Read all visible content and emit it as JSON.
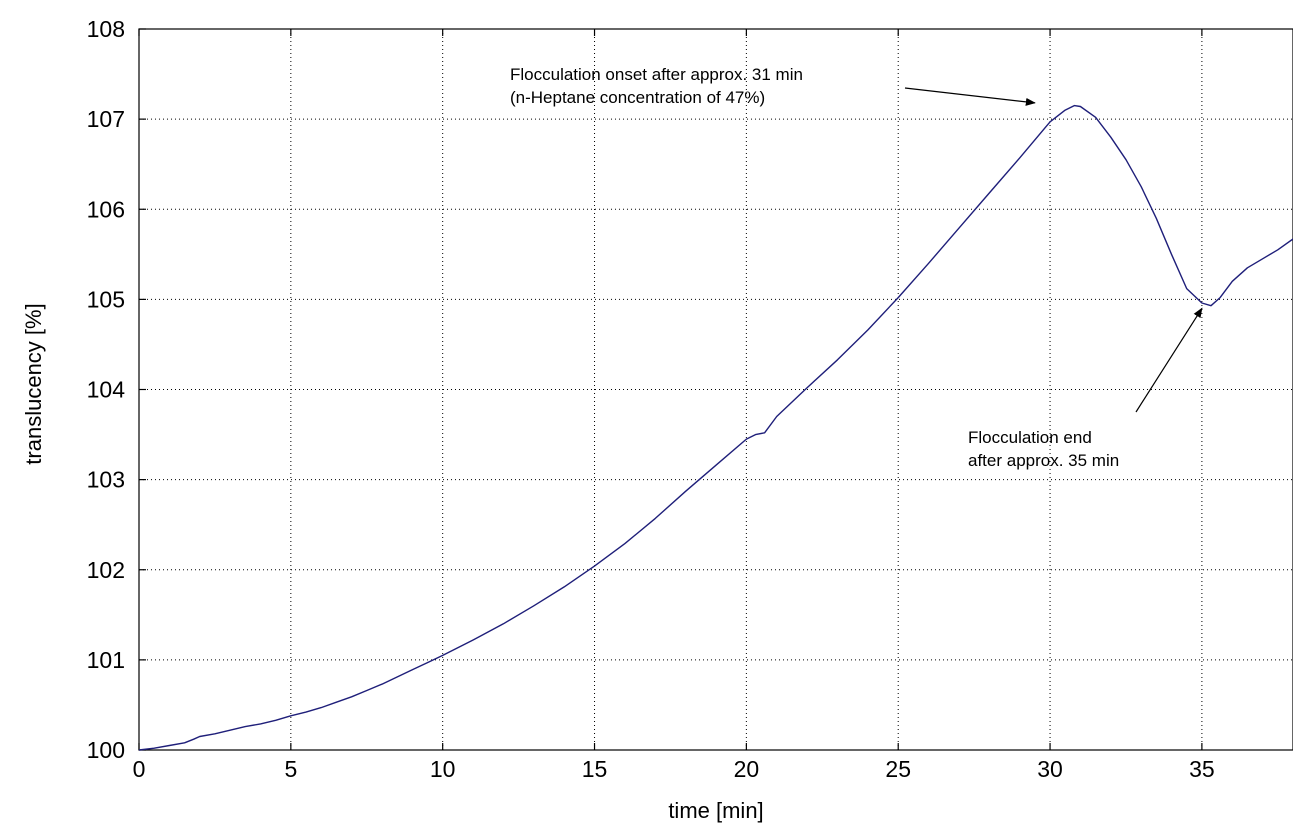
{
  "chart_data": {
    "type": "line",
    "xlabel": "time [min]",
    "ylabel": "translucency [%]",
    "xlim": [
      0,
      38
    ],
    "ylim": [
      100,
      108
    ],
    "xticks": [
      0,
      5,
      10,
      15,
      20,
      25,
      30,
      35
    ],
    "yticks": [
      100,
      101,
      102,
      103,
      104,
      105,
      106,
      107,
      108
    ],
    "grid": true,
    "series": [
      {
        "color": "#1f1f7a",
        "x": [
          0,
          0.5,
          1,
          1.5,
          1.8,
          2,
          2.5,
          3,
          3.5,
          4,
          4.5,
          5,
          5.5,
          6,
          6.5,
          7,
          7.5,
          8,
          8.5,
          9,
          9.5,
          10,
          11,
          12,
          13,
          14,
          15,
          16,
          17,
          18,
          19,
          20,
          20.3,
          20.6,
          21,
          22,
          23,
          24,
          25,
          26,
          27,
          28,
          29,
          30,
          30.5,
          30.8,
          31,
          31.5,
          32,
          32.5,
          33,
          33.5,
          34,
          34.5,
          35,
          35.3,
          35.6,
          36,
          36.5,
          37,
          37.5,
          38
        ],
        "y": [
          100.0,
          100.02,
          100.05,
          100.08,
          100.12,
          100.15,
          100.18,
          100.22,
          100.26,
          100.29,
          100.33,
          100.38,
          100.42,
          100.47,
          100.53,
          100.59,
          100.66,
          100.73,
          100.81,
          100.89,
          100.97,
          101.05,
          101.22,
          101.4,
          101.6,
          101.81,
          102.04,
          102.29,
          102.57,
          102.87,
          103.16,
          103.45,
          103.5,
          103.52,
          103.7,
          104.02,
          104.33,
          104.66,
          105.02,
          105.4,
          105.79,
          106.18,
          106.57,
          106.97,
          107.1,
          107.15,
          107.14,
          107.02,
          106.8,
          106.55,
          106.25,
          105.9,
          105.5,
          105.12,
          104.96,
          104.93,
          105.02,
          105.2,
          105.35,
          105.45,
          105.55,
          105.67
        ]
      }
    ],
    "annotations": [
      {
        "lines": [
          "Flocculation onset after approx. 31 min",
          "(n-Heptane concentration of 47%)"
        ],
        "arrow_to": [
          29.5,
          107.18
        ]
      },
      {
        "lines": [
          "Flocculation end",
          "after approx. 35 min"
        ],
        "arrow_to": [
          35.0,
          104.9
        ]
      }
    ]
  }
}
